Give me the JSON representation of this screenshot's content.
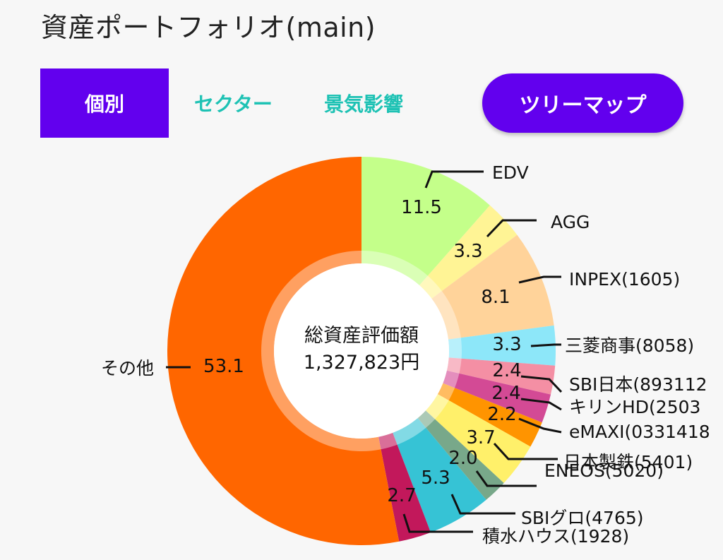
{
  "header": {
    "title": "資産ポートフォリオ(main)"
  },
  "tabs": [
    {
      "label": "個別",
      "active": true
    },
    {
      "label": "セクター",
      "active": false
    },
    {
      "label": "景気影響",
      "active": false
    }
  ],
  "treemap_button": {
    "label": "ツリーマップ"
  },
  "colors": {
    "accent": "#6200ee",
    "tab_inactive_text": "#1ec2b4"
  },
  "center": {
    "title": "総資産評価額",
    "value": "1,327,823円"
  },
  "chart_data": {
    "type": "pie",
    "title": "",
    "slices": [
      {
        "label": "EDV",
        "value": 11.5,
        "color": "#c4ff8a"
      },
      {
        "label": "AGG",
        "value": 3.3,
        "color": "#fff495"
      },
      {
        "label": "INPEX(1605)",
        "value": 8.1,
        "color": "#ffd39a"
      },
      {
        "label": "三菱商事(8058)",
        "value": 3.3,
        "color": "#8de7f9"
      },
      {
        "label": "SBI日本(893112",
        "value": 2.4,
        "color": "#f48fa4"
      },
      {
        "label": "キリンHD(2503",
        "value": 2.4,
        "color": "#d34a95"
      },
      {
        "label": "eMAXI(0331418",
        "value": 2.2,
        "color": "#ff9400"
      },
      {
        "label": "日本製鉄(5401)",
        "value": 3.7,
        "color": "#fff06a"
      },
      {
        "label": "ENEOS(5020)",
        "value": 2.0,
        "color": "#78a88a"
      },
      {
        "label": "SBIグロ(4765)",
        "value": 5.3,
        "color": "#36c3d5"
      },
      {
        "label": "積水ハウス(1928)",
        "value": 2.7,
        "color": "#c2185b"
      },
      {
        "label": "その他",
        "value": 53.1,
        "color": "#ff6600"
      }
    ]
  }
}
